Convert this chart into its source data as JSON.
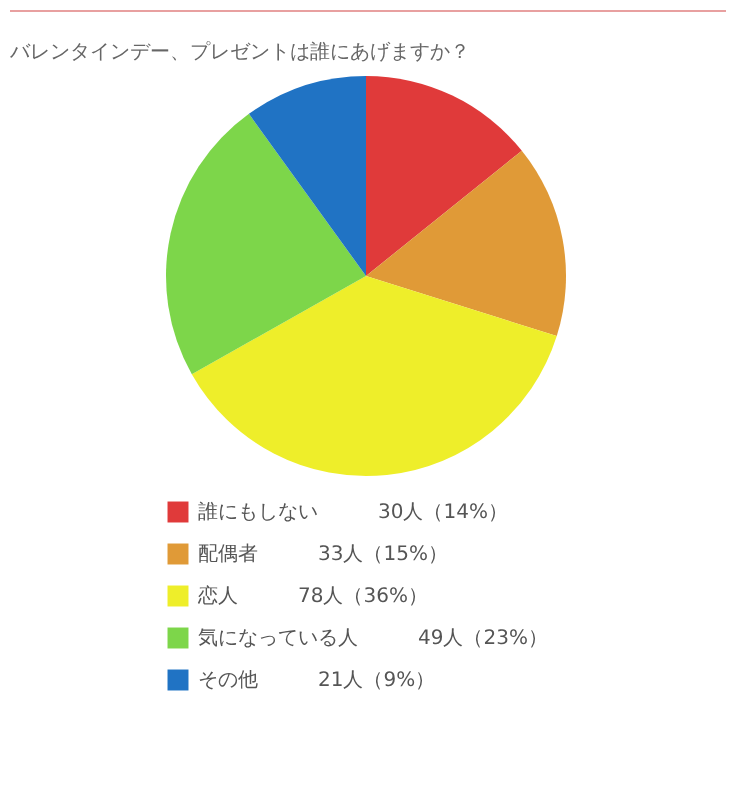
{
  "chart_data": {
    "type": "pie",
    "title": "バレンタインデー、プレゼントは誰にあげますか？",
    "categories": [
      "誰にもしない",
      "配偶者",
      "恋人",
      "気になっている人",
      "その他"
    ],
    "values": [
      30,
      33,
      78,
      49,
      21
    ],
    "value_labels": [
      "30人（14%）",
      "33人（15%）",
      "78人（36%）",
      "49人（23%）",
      "21人（9%）"
    ],
    "colors": [
      "#e03a3a",
      "#e09a37",
      "#eeee2a",
      "#7dd64a",
      "#2073c4"
    ],
    "legend": "bottom"
  }
}
